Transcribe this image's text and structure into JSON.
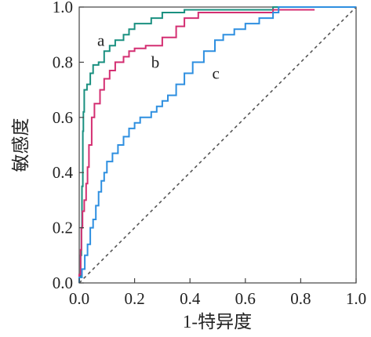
{
  "chart_data": {
    "type": "line",
    "xlabel": "1-特异度",
    "ylabel": "敏感度",
    "xlim": [
      0,
      1
    ],
    "ylim": [
      0,
      1
    ],
    "x_ticks": [
      "0.0",
      "0.2",
      "0.4",
      "0.6",
      "0.8",
      "1.0"
    ],
    "y_ticks": [
      "0.0",
      "0.2",
      "0.4",
      "0.6",
      "0.8",
      "1.0"
    ],
    "grid": false,
    "legend": "none",
    "reference_line": {
      "style": "dashed",
      "color": "#555555",
      "points": [
        [
          0,
          0
        ],
        [
          1,
          1
        ]
      ]
    },
    "series": [
      {
        "name": "a",
        "color": "#1a9080",
        "points": [
          [
            0,
            0
          ],
          [
            0,
            0.02
          ],
          [
            0.005,
            0.02
          ],
          [
            0.005,
            0.1
          ],
          [
            0.008,
            0.1
          ],
          [
            0.008,
            0.2
          ],
          [
            0.01,
            0.2
          ],
          [
            0.01,
            0.35
          ],
          [
            0.013,
            0.35
          ],
          [
            0.013,
            0.55
          ],
          [
            0.015,
            0.55
          ],
          [
            0.015,
            0.62
          ],
          [
            0.018,
            0.62
          ],
          [
            0.018,
            0.7
          ],
          [
            0.028,
            0.7
          ],
          [
            0.028,
            0.72
          ],
          [
            0.04,
            0.72
          ],
          [
            0.04,
            0.76
          ],
          [
            0.05,
            0.76
          ],
          [
            0.05,
            0.79
          ],
          [
            0.07,
            0.79
          ],
          [
            0.07,
            0.8
          ],
          [
            0.09,
            0.8
          ],
          [
            0.09,
            0.84
          ],
          [
            0.11,
            0.84
          ],
          [
            0.11,
            0.86
          ],
          [
            0.13,
            0.86
          ],
          [
            0.13,
            0.88
          ],
          [
            0.16,
            0.88
          ],
          [
            0.16,
            0.9
          ],
          [
            0.18,
            0.9
          ],
          [
            0.18,
            0.92
          ],
          [
            0.2,
            0.92
          ],
          [
            0.2,
            0.94
          ],
          [
            0.26,
            0.94
          ],
          [
            0.26,
            0.96
          ],
          [
            0.3,
            0.96
          ],
          [
            0.3,
            0.98
          ],
          [
            0.38,
            0.98
          ],
          [
            0.38,
            0.99
          ],
          [
            0.7,
            0.99
          ],
          [
            0.7,
            1.0
          ],
          [
            1.0,
            1.0
          ]
        ]
      },
      {
        "name": "b",
        "color": "#d42f72",
        "points": [
          [
            0,
            0
          ],
          [
            0,
            0.03
          ],
          [
            0.005,
            0.03
          ],
          [
            0.005,
            0.12
          ],
          [
            0.008,
            0.12
          ],
          [
            0.008,
            0.2
          ],
          [
            0.012,
            0.2
          ],
          [
            0.012,
            0.26
          ],
          [
            0.018,
            0.26
          ],
          [
            0.018,
            0.3
          ],
          [
            0.025,
            0.3
          ],
          [
            0.025,
            0.36
          ],
          [
            0.03,
            0.36
          ],
          [
            0.03,
            0.42
          ],
          [
            0.035,
            0.42
          ],
          [
            0.035,
            0.5
          ],
          [
            0.045,
            0.5
          ],
          [
            0.045,
            0.6
          ],
          [
            0.055,
            0.6
          ],
          [
            0.055,
            0.65
          ],
          [
            0.075,
            0.65
          ],
          [
            0.075,
            0.7
          ],
          [
            0.09,
            0.7
          ],
          [
            0.09,
            0.74
          ],
          [
            0.11,
            0.74
          ],
          [
            0.11,
            0.77
          ],
          [
            0.13,
            0.77
          ],
          [
            0.13,
            0.8
          ],
          [
            0.16,
            0.8
          ],
          [
            0.16,
            0.82
          ],
          [
            0.18,
            0.82
          ],
          [
            0.18,
            0.84
          ],
          [
            0.2,
            0.84
          ],
          [
            0.2,
            0.85
          ],
          [
            0.24,
            0.85
          ],
          [
            0.24,
            0.86
          ],
          [
            0.3,
            0.86
          ],
          [
            0.3,
            0.89
          ],
          [
            0.35,
            0.89
          ],
          [
            0.35,
            0.93
          ],
          [
            0.38,
            0.93
          ],
          [
            0.38,
            0.96
          ],
          [
            0.43,
            0.96
          ],
          [
            0.43,
            0.98
          ],
          [
            0.7,
            0.98
          ],
          [
            0.7,
            0.99
          ],
          [
            0.85,
            0.99
          ]
        ]
      },
      {
        "name": "c",
        "color": "#2e8fe0",
        "points": [
          [
            0,
            0
          ],
          [
            0,
            0.02
          ],
          [
            0.01,
            0.02
          ],
          [
            0.01,
            0.05
          ],
          [
            0.02,
            0.05
          ],
          [
            0.02,
            0.1
          ],
          [
            0.03,
            0.1
          ],
          [
            0.03,
            0.14
          ],
          [
            0.04,
            0.14
          ],
          [
            0.04,
            0.2
          ],
          [
            0.05,
            0.2
          ],
          [
            0.05,
            0.23
          ],
          [
            0.06,
            0.23
          ],
          [
            0.06,
            0.28
          ],
          [
            0.07,
            0.28
          ],
          [
            0.07,
            0.33
          ],
          [
            0.08,
            0.33
          ],
          [
            0.08,
            0.37
          ],
          [
            0.09,
            0.37
          ],
          [
            0.09,
            0.4
          ],
          [
            0.1,
            0.4
          ],
          [
            0.1,
            0.44
          ],
          [
            0.12,
            0.44
          ],
          [
            0.12,
            0.47
          ],
          [
            0.14,
            0.47
          ],
          [
            0.14,
            0.5
          ],
          [
            0.16,
            0.5
          ],
          [
            0.16,
            0.53
          ],
          [
            0.18,
            0.53
          ],
          [
            0.18,
            0.56
          ],
          [
            0.2,
            0.56
          ],
          [
            0.2,
            0.58
          ],
          [
            0.22,
            0.58
          ],
          [
            0.22,
            0.6
          ],
          [
            0.26,
            0.6
          ],
          [
            0.26,
            0.62
          ],
          [
            0.28,
            0.62
          ],
          [
            0.28,
            0.64
          ],
          [
            0.3,
            0.64
          ],
          [
            0.3,
            0.66
          ],
          [
            0.32,
            0.66
          ],
          [
            0.32,
            0.68
          ],
          [
            0.35,
            0.68
          ],
          [
            0.35,
            0.72
          ],
          [
            0.38,
            0.72
          ],
          [
            0.38,
            0.76
          ],
          [
            0.41,
            0.76
          ],
          [
            0.41,
            0.8
          ],
          [
            0.45,
            0.8
          ],
          [
            0.45,
            0.84
          ],
          [
            0.49,
            0.84
          ],
          [
            0.49,
            0.88
          ],
          [
            0.52,
            0.88
          ],
          [
            0.52,
            0.9
          ],
          [
            0.56,
            0.9
          ],
          [
            0.56,
            0.92
          ],
          [
            0.6,
            0.92
          ],
          [
            0.6,
            0.94
          ],
          [
            0.65,
            0.94
          ],
          [
            0.65,
            0.96
          ],
          [
            0.7,
            0.96
          ],
          [
            0.7,
            0.98
          ],
          [
            0.72,
            0.98
          ],
          [
            0.72,
            1.0
          ],
          [
            1.0,
            1.0
          ]
        ]
      }
    ]
  }
}
